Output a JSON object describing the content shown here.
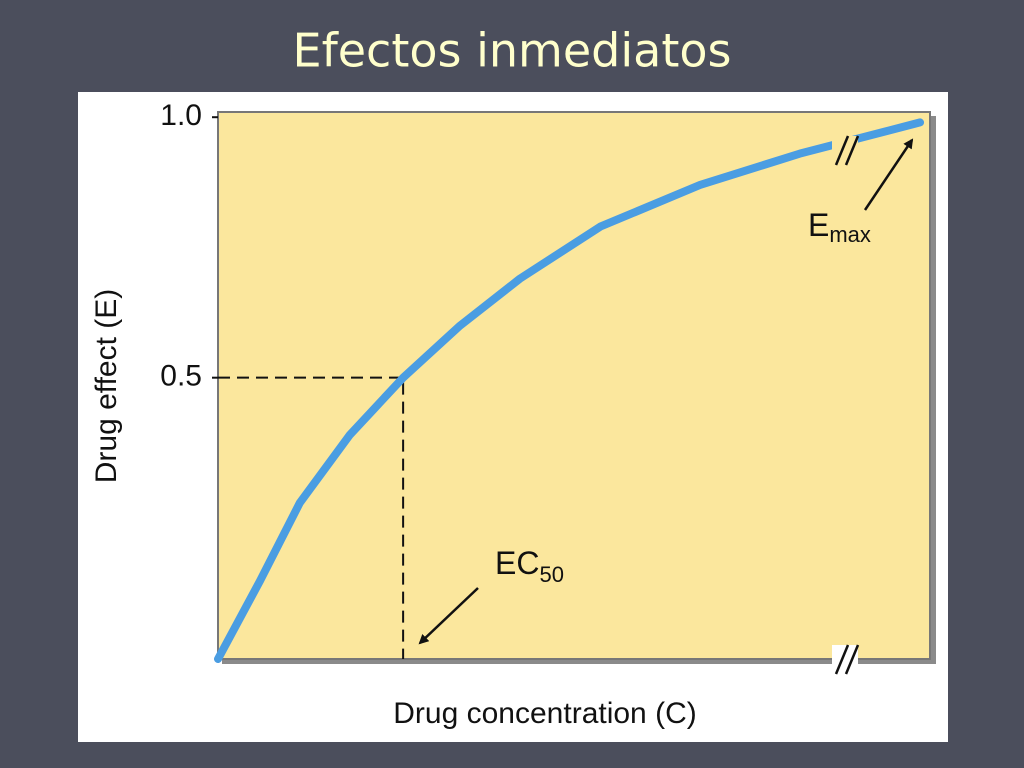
{
  "chart_data": {
    "type": "line",
    "title": "Efectos inmediatos",
    "x_label": "Drug concentration (C)",
    "y_label": "Drug effect (E)",
    "x": [
      0,
      0.059,
      0.115,
      0.185,
      0.26,
      0.34,
      0.424,
      0.537,
      0.677,
      0.817,
      0.986
    ],
    "values": [
      -0.04,
      0.11,
      0.26,
      0.39,
      0.5,
      0.6,
      0.69,
      0.79,
      0.87,
      0.93,
      0.99
    ],
    "color": "#4a9de2",
    "xlim": [
      0,
      1
    ],
    "ylim": [
      -0.04,
      1.01
    ],
    "yticks": [
      {
        "value": 1,
        "label": "1.0"
      },
      {
        "value": 0.5,
        "label": "0.5"
      }
    ],
    "annotations": [
      {
        "text": "E",
        "sub": "max"
      },
      {
        "text": "EC",
        "sub": "50"
      }
    ]
  }
}
